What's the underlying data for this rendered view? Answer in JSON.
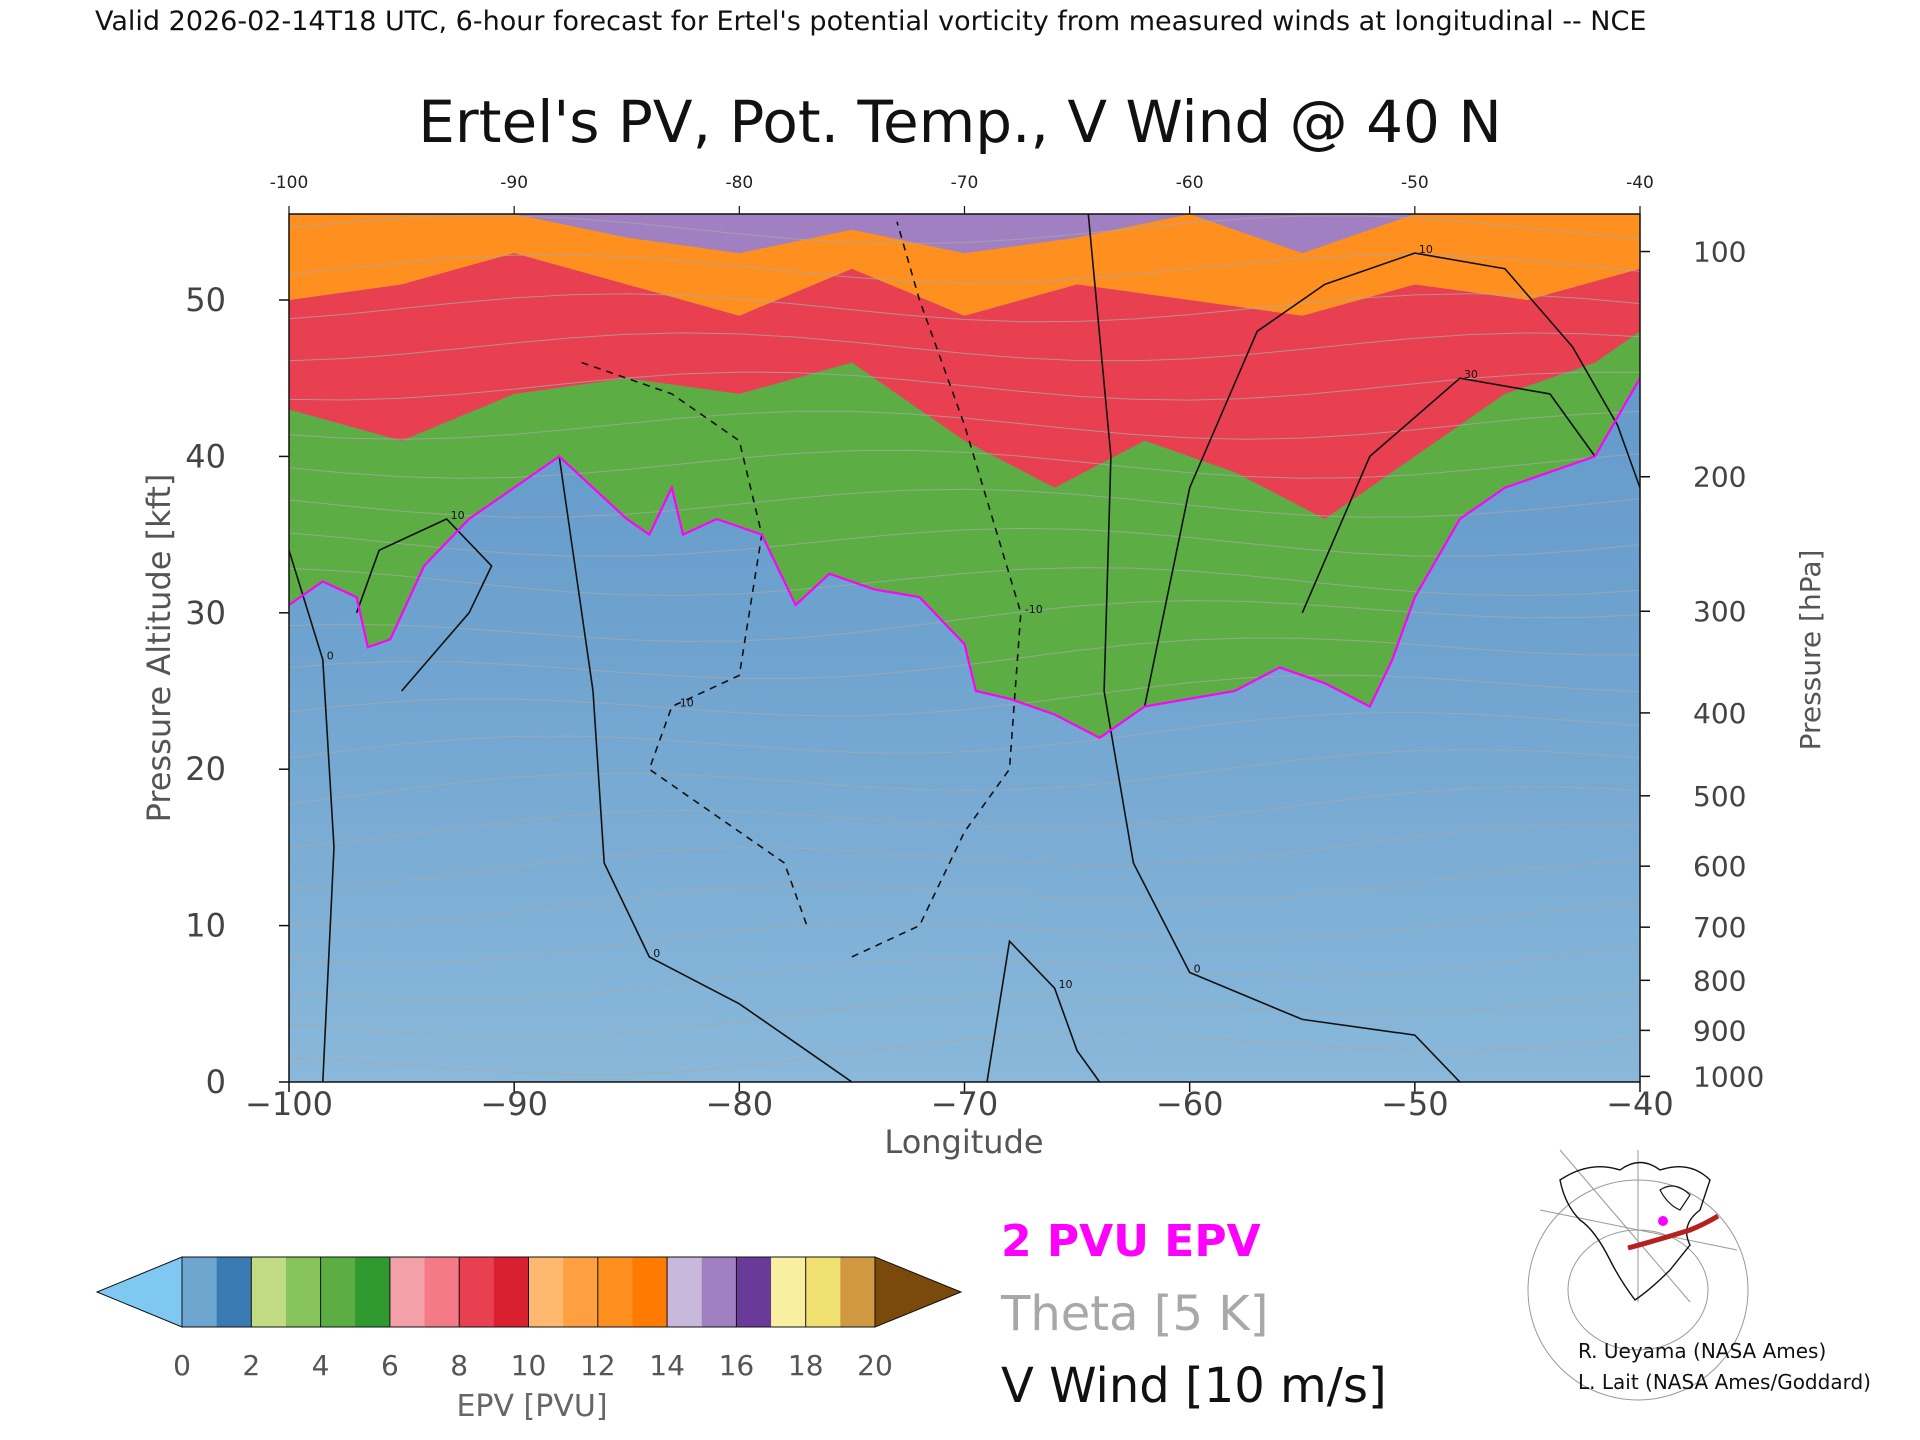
{
  "header": {
    "valid_line": "Valid 2026-02-14T18 UTC, 6-hour forecast for Ertel's potential vorticity from measured winds at longitudinal -- NCE"
  },
  "chart_data": {
    "type": "heatmap",
    "title": "Ertel's PV, Pot. Temp., V Wind @ 40 N",
    "xlabel": "Longitude",
    "ylabel": "Pressure Altitude [kft]",
    "y2label": "Pressure [hPa]",
    "xlim": [
      -100,
      -40
    ],
    "ylim": [
      0,
      55.5
    ],
    "x_ticks": [
      -100,
      -90,
      -80,
      -70,
      -60,
      -50,
      -40
    ],
    "x_tick_labels": [
      "−100",
      "−90",
      "−80",
      "−70",
      "−60",
      "−50",
      "−40"
    ],
    "top_tick_labels": [
      "-100",
      "-90",
      "-80",
      "-70",
      "-60",
      "-50",
      "-40"
    ],
    "y_ticks": [
      0,
      10,
      20,
      30,
      40,
      50
    ],
    "y_tick_labels": [
      "0",
      "10",
      "20",
      "30",
      "40",
      "50"
    ],
    "pressure_ticks": [
      {
        "hPa": 1000,
        "kft": 0.36,
        "label": "1000"
      },
      {
        "hPa": 900,
        "kft": 3.3,
        "label": "900"
      },
      {
        "hPa": 800,
        "kft": 6.5,
        "label": "800"
      },
      {
        "hPa": 700,
        "kft": 9.9,
        "label": "700"
      },
      {
        "hPa": 600,
        "kft": 13.8,
        "label": "600"
      },
      {
        "hPa": 500,
        "kft": 18.3,
        "label": "500"
      },
      {
        "hPa": 400,
        "kft": 23.6,
        "label": "400"
      },
      {
        "hPa": 300,
        "kft": 30.1,
        "label": "300"
      },
      {
        "hPa": 200,
        "kft": 38.7,
        "label": "200"
      },
      {
        "hPa": 100,
        "kft": 53.1,
        "label": "100"
      }
    ],
    "tropopause_2pvu_kft": [
      [
        -100,
        30.5
      ],
      [
        -98.5,
        32
      ],
      [
        -97,
        31
      ],
      [
        -96.5,
        27.8
      ],
      [
        -95.5,
        28.3
      ],
      [
        -94,
        33
      ],
      [
        -92,
        36
      ],
      [
        -90.5,
        37.5
      ],
      [
        -88,
        40
      ],
      [
        -85,
        36
      ],
      [
        -84,
        35
      ],
      [
        -83,
        38
      ],
      [
        -82.5,
        35
      ],
      [
        -81,
        36
      ],
      [
        -79,
        35
      ],
      [
        -77.5,
        30.5
      ],
      [
        -76,
        32.5
      ],
      [
        -74,
        31.5
      ],
      [
        -72,
        31
      ],
      [
        -70,
        28
      ],
      [
        -69.5,
        25
      ],
      [
        -68,
        24.5
      ],
      [
        -66,
        23.5
      ],
      [
        -64,
        22
      ],
      [
        -62,
        24
      ],
      [
        -58,
        25
      ],
      [
        -56,
        26.5
      ],
      [
        -54,
        25.5
      ],
      [
        -52,
        24
      ],
      [
        -51,
        27
      ],
      [
        -50,
        31
      ],
      [
        -48,
        36
      ],
      [
        -46,
        38
      ],
      [
        -44,
        39
      ],
      [
        -42,
        40
      ],
      [
        -40,
        45
      ]
    ],
    "pv_bands_kft": {
      "green_top": [
        [
          -100,
          43
        ],
        [
          -95,
          41
        ],
        [
          -90,
          44
        ],
        [
          -85,
          45
        ],
        [
          -80,
          44
        ],
        [
          -75,
          46
        ],
        [
          -70,
          41
        ],
        [
          -66,
          38
        ],
        [
          -62,
          41
        ],
        [
          -58,
          39
        ],
        [
          -54,
          36
        ],
        [
          -50,
          40
        ],
        [
          -46,
          44
        ],
        [
          -42,
          46
        ],
        [
          -40,
          48
        ]
      ],
      "red_top": [
        [
          -100,
          50
        ],
        [
          -95,
          51
        ],
        [
          -90,
          53
        ],
        [
          -85,
          51
        ],
        [
          -80,
          49
        ],
        [
          -75,
          52
        ],
        [
          -70,
          49
        ],
        [
          -65,
          51
        ],
        [
          -60,
          50
        ],
        [
          -55,
          49
        ],
        [
          -50,
          51
        ],
        [
          -45,
          50
        ],
        [
          -40,
          52
        ]
      ],
      "orange_top": [
        [
          -100,
          55.5
        ],
        [
          -95,
          55.5
        ],
        [
          -90,
          55.5
        ],
        [
          -85,
          54
        ],
        [
          -80,
          53
        ],
        [
          -75,
          54.5
        ],
        [
          -70,
          53
        ],
        [
          -65,
          54
        ],
        [
          -60,
          55.5
        ],
        [
          -55,
          53
        ],
        [
          -50,
          55.5
        ],
        [
          -45,
          55.5
        ],
        [
          -40,
          55.5
        ]
      ]
    },
    "v_wind_contours": [
      {
        "label": "0",
        "style": "solid",
        "points": [
          [
            -88,
            40
          ],
          [
            -86.5,
            25
          ],
          [
            -86,
            14
          ],
          [
            -84,
            8
          ],
          [
            -80,
            5
          ],
          [
            -77,
            2
          ],
          [
            -75,
            0
          ]
        ]
      },
      {
        "label": "0",
        "style": "solid",
        "points": [
          [
            -64.5,
            55.5
          ],
          [
            -63.5,
            40
          ],
          [
            -63.8,
            25
          ],
          [
            -62.5,
            14
          ],
          [
            -60,
            7
          ],
          [
            -55,
            4
          ],
          [
            -50,
            3
          ],
          [
            -48,
            0
          ]
        ]
      },
      {
        "label": "0",
        "style": "solid",
        "points": [
          [
            -98.5,
            0
          ],
          [
            -98,
            15
          ],
          [
            -98.5,
            27
          ],
          [
            -100,
            34
          ]
        ]
      },
      {
        "label": "10",
        "style": "solid",
        "points": [
          [
            -62,
            24
          ],
          [
            -60,
            38
          ],
          [
            -57,
            48
          ],
          [
            -54,
            51
          ],
          [
            -50,
            53
          ],
          [
            -46,
            52
          ],
          [
            -43,
            47
          ],
          [
            -41,
            42
          ],
          [
            -40,
            38
          ]
        ]
      },
      {
        "label": "10",
        "style": "solid",
        "points": [
          [
            -69,
            0
          ],
          [
            -68,
            9
          ],
          [
            -66,
            6
          ],
          [
            -65,
            2
          ],
          [
            -64,
            0
          ]
        ]
      },
      {
        "label": "10",
        "style": "solid",
        "points": [
          [
            -95,
            25
          ],
          [
            -92,
            30
          ],
          [
            -91,
            33
          ],
          [
            -93,
            36
          ],
          [
            -96,
            34
          ],
          [
            -97,
            30
          ]
        ]
      },
      {
        "label": "30",
        "style": "solid",
        "points": [
          [
            -55,
            30
          ],
          [
            -52,
            40
          ],
          [
            -48,
            45
          ],
          [
            -44,
            44
          ],
          [
            -42,
            40
          ]
        ]
      },
      {
        "label": "-10",
        "style": "dashed",
        "points": [
          [
            -75,
            8
          ],
          [
            -72,
            10
          ],
          [
            -70,
            16
          ],
          [
            -68,
            20
          ],
          [
            -67.5,
            30
          ],
          [
            -70,
            42
          ],
          [
            -72,
            50
          ],
          [
            -73,
            55
          ]
        ]
      },
      {
        "label": "-10",
        "style": "dashed",
        "points": [
          [
            -87,
            46
          ],
          [
            -83,
            44
          ],
          [
            -80,
            41
          ],
          [
            -79,
            35
          ],
          [
            -80,
            26
          ],
          [
            -83,
            24
          ],
          [
            -84,
            20
          ],
          [
            -81,
            17
          ],
          [
            -78,
            14
          ],
          [
            -77,
            10
          ]
        ]
      }
    ],
    "theta_label": "Theta [5 K]",
    "colorbar": {
      "label": "EPV [PVU]",
      "ticks": [
        "0",
        "2",
        "4",
        "6",
        "8",
        "10",
        "12",
        "14",
        "16",
        "18",
        "20"
      ],
      "colors": {
        "under": "#7ec8f2",
        "0_1": "#6fa6d0",
        "1_2": "#3a7bb4",
        "2_3": "#c2dc86",
        "3_4": "#88c45c",
        "4_5": "#5cad44",
        "5_6": "#309a30",
        "6_7": "#f4a0a8",
        "7_8": "#f47a88",
        "8_9": "#e84050",
        "9_10": "#d82030",
        "10_11": "#ffb870",
        "11_12": "#ffa040",
        "12_13": "#ff9020",
        "13_14": "#ff7a00",
        "14_15": "#c8b8dc",
        "15_16": "#a080c0",
        "16_17": "#6a3a98",
        "17_18": "#f8f0a0",
        "18_19": "#f0e070",
        "19_20": "#d09840",
        "over": "#7a4a0c"
      }
    }
  },
  "legend": {
    "pvu_label": "2 PVU EPV",
    "theta_label": "Theta [5 K]",
    "wind_label": "V Wind [10 m/s]",
    "pvu_color": "#ff00ff",
    "theta_color": "#a8a8a8",
    "wind_color": "#111111"
  },
  "credits": {
    "line1": "R. Ueyama (NASA Ames)",
    "line2": "L. Lait (NASA Ames/Goddard)"
  }
}
